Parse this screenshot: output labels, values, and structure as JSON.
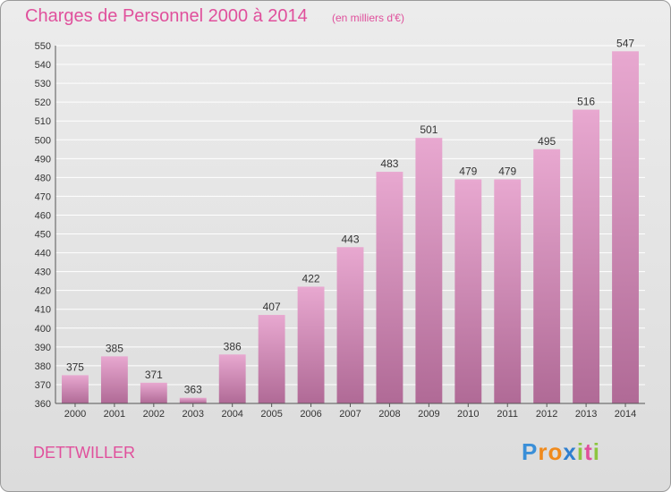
{
  "title": "Charges de Personnel 2000 à 2014",
  "subtitle": "(en milliers d'€)",
  "commune": "DETTWILLER",
  "logo": {
    "letters": [
      "P",
      "r",
      "o",
      "x",
      "i",
      "t",
      "i"
    ],
    "colors": [
      "#3a8fd8",
      "#f08a1c",
      "#f08a1c",
      "#2f7fcf",
      "#8cc63f",
      "#e0509c",
      "#8cc63f"
    ]
  },
  "colors": {
    "accent": "#e0509c",
    "bar_top": "#e8a8d0",
    "bar_bottom": "#b06a96"
  },
  "chart_data": {
    "type": "bar",
    "categories": [
      "2000",
      "2001",
      "2002",
      "2003",
      "2004",
      "2005",
      "2006",
      "2007",
      "2008",
      "2009",
      "2010",
      "2011",
      "2012",
      "2013",
      "2014"
    ],
    "values": [
      375,
      385,
      371,
      363,
      386,
      407,
      422,
      443,
      483,
      501,
      479,
      479,
      495,
      516,
      547
    ],
    "title": "Charges de Personnel 2000 à 2014",
    "subtitle": "(en milliers d'€)",
    "xlabel": "",
    "ylabel": "",
    "ylim": [
      360,
      550
    ],
    "yticks": [
      360,
      370,
      380,
      390,
      400,
      410,
      420,
      430,
      440,
      450,
      460,
      470,
      480,
      490,
      500,
      510,
      520,
      530,
      540,
      550
    ],
    "grid": true
  }
}
